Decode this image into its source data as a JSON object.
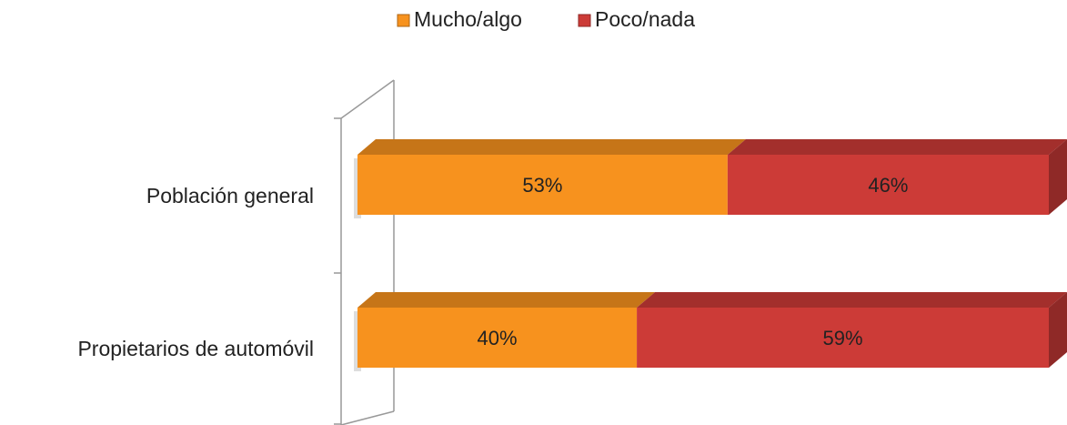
{
  "chart_data": {
    "type": "bar",
    "orientation": "horizontal",
    "stacked": true,
    "categories": [
      "Población general",
      "Propietarios de automóvil"
    ],
    "series": [
      {
        "name": "Mucho/algo",
        "color": "#f7921e",
        "values": [
          53,
          40
        ],
        "value_labels": [
          "53%",
          "40%"
        ]
      },
      {
        "name": "Poco/nada",
        "color": "#cc3b37",
        "values": [
          46,
          59
        ],
        "value_labels": [
          "46%",
          "59%"
        ]
      }
    ],
    "legend": "top"
  }
}
